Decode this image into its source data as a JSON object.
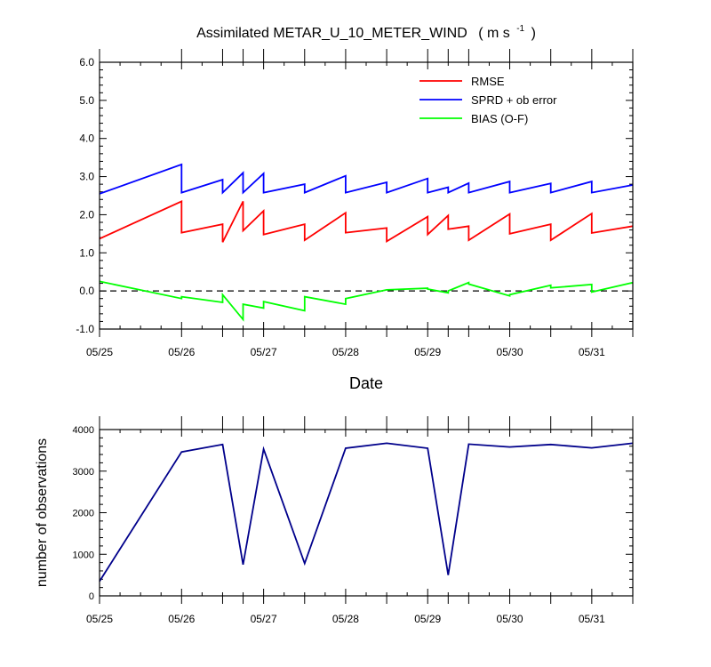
{
  "title": "Assimilated METAR_U_10_METER_WIND",
  "title_units": "( m s",
  "title_units_exp": "-1",
  "title_units_close": ")",
  "chart_data": [
    {
      "type": "line",
      "x_unit": "days",
      "xlabel": "Date",
      "ylabel": "",
      "xlim": [
        "05/25",
        "05/31 12Z"
      ],
      "ylim": [
        -1.0,
        6.0
      ],
      "y_ticks": [
        "-1.0",
        "0.0",
        "1.0",
        "2.0",
        "3.0",
        "4.0",
        "5.0",
        "6.0"
      ],
      "x_ticks": [
        "05/25",
        "05/26",
        "05/27",
        "05/28",
        "05/29",
        "05/30",
        "05/31"
      ],
      "reference_line": {
        "y": 0.0,
        "style": "dashed"
      },
      "legend_position": "top-right",
      "series": [
        {
          "name": "RMSE",
          "color": "#ff0000",
          "segments": [
            {
              "x": [
                0,
                1
              ],
              "y": [
                1.37,
                2.35
              ]
            },
            {
              "x": [
                1,
                1.5
              ],
              "y": [
                1.53,
                1.75
              ]
            },
            {
              "x": [
                1.5,
                1.75
              ],
              "y": [
                1.28,
                2.35
              ]
            },
            {
              "x": [
                1.75,
                2
              ],
              "y": [
                1.58,
                2.1
              ]
            },
            {
              "x": [
                2,
                2.5
              ],
              "y": [
                1.48,
                1.75
              ]
            },
            {
              "x": [
                2.5,
                3
              ],
              "y": [
                1.33,
                2.05
              ]
            },
            {
              "x": [
                3,
                3.5
              ],
              "y": [
                1.53,
                1.65
              ]
            },
            {
              "x": [
                3.5,
                4
              ],
              "y": [
                1.3,
                1.95
              ]
            },
            {
              "x": [
                4,
                4.25
              ],
              "y": [
                1.48,
                1.98
              ]
            },
            {
              "x": [
                4.25,
                4.5
              ],
              "y": [
                1.62,
                1.7
              ]
            },
            {
              "x": [
                4.5,
                5
              ],
              "y": [
                1.33,
                2.02
              ]
            },
            {
              "x": [
                5,
                5.5
              ],
              "y": [
                1.5,
                1.75
              ]
            },
            {
              "x": [
                5.5,
                6
              ],
              "y": [
                1.33,
                2.03
              ]
            },
            {
              "x": [
                6,
                6.5
              ],
              "y": [
                1.52,
                1.7
              ]
            }
          ]
        },
        {
          "name": "SPRD + ob error",
          "color": "#0000ff",
          "segments": [
            {
              "x": [
                0,
                1
              ],
              "y": [
                2.55,
                3.32
              ]
            },
            {
              "x": [
                1,
                1.5
              ],
              "y": [
                2.58,
                2.92
              ]
            },
            {
              "x": [
                1.5,
                1.75
              ],
              "y": [
                2.58,
                3.1
              ]
            },
            {
              "x": [
                1.75,
                2
              ],
              "y": [
                2.58,
                3.08
              ]
            },
            {
              "x": [
                2,
                2.5
              ],
              "y": [
                2.58,
                2.8
              ]
            },
            {
              "x": [
                2.5,
                3
              ],
              "y": [
                2.58,
                3.02
              ]
            },
            {
              "x": [
                3,
                3.5
              ],
              "y": [
                2.58,
                2.85
              ]
            },
            {
              "x": [
                3.5,
                4
              ],
              "y": [
                2.58,
                2.95
              ]
            },
            {
              "x": [
                4,
                4.25
              ],
              "y": [
                2.58,
                2.72
              ]
            },
            {
              "x": [
                4.25,
                4.5
              ],
              "y": [
                2.58,
                2.83
              ]
            },
            {
              "x": [
                4.5,
                5
              ],
              "y": [
                2.58,
                2.87
              ]
            },
            {
              "x": [
                5,
                5.5
              ],
              "y": [
                2.58,
                2.82
              ]
            },
            {
              "x": [
                5.5,
                6
              ],
              "y": [
                2.58,
                2.87
              ]
            },
            {
              "x": [
                6,
                6.5
              ],
              "y": [
                2.58,
                2.78
              ]
            }
          ]
        },
        {
          "name": "BIAS (O-F)",
          "color": "#00ff00",
          "segments": [
            {
              "x": [
                0,
                1
              ],
              "y": [
                0.25,
                -0.2
              ]
            },
            {
              "x": [
                1,
                1.5
              ],
              "y": [
                -0.15,
                -0.3
              ]
            },
            {
              "x": [
                1.5,
                1.75
              ],
              "y": [
                -0.1,
                -0.75
              ]
            },
            {
              "x": [
                1.75,
                2
              ],
              "y": [
                -0.35,
                -0.45
              ]
            },
            {
              "x": [
                2,
                2.5
              ],
              "y": [
                -0.28,
                -0.52
              ]
            },
            {
              "x": [
                2.5,
                3
              ],
              "y": [
                -0.15,
                -0.35
              ]
            },
            {
              "x": [
                3,
                3.5
              ],
              "y": [
                -0.2,
                0.03
              ]
            },
            {
              "x": [
                3.5,
                4
              ],
              "y": [
                0.03,
                0.07
              ]
            },
            {
              "x": [
                4,
                4.25
              ],
              "y": [
                0.05,
                -0.05
              ]
            },
            {
              "x": [
                4.25,
                4.5
              ],
              "y": [
                0.0,
                0.22
              ]
            },
            {
              "x": [
                4.5,
                5
              ],
              "y": [
                0.18,
                -0.13
              ]
            },
            {
              "x": [
                5,
                5.5
              ],
              "y": [
                -0.1,
                0.15
              ]
            },
            {
              "x": [
                5.5,
                6
              ],
              "y": [
                0.08,
                0.17
              ]
            },
            {
              "x": [
                6,
                6.5
              ],
              "y": [
                -0.03,
                0.22
              ]
            }
          ]
        }
      ]
    },
    {
      "type": "line",
      "x_unit": "days",
      "xlabel": "",
      "ylabel": "number of observations",
      "xlim": [
        "05/25",
        "05/31 12Z"
      ],
      "ylim": [
        0,
        4000
      ],
      "y_ticks": [
        "0",
        "1000",
        "2000",
        "3000",
        "4000"
      ],
      "x_ticks": [
        "05/25",
        "05/26",
        "05/27",
        "05/28",
        "05/29",
        "05/30",
        "05/31"
      ],
      "series": [
        {
          "color": "#00008b",
          "x": [
            0,
            1,
            1.5,
            1.75,
            2,
            2.5,
            3,
            3.5,
            4,
            4.25,
            4.5,
            5,
            5.5,
            6,
            6.5
          ],
          "y": [
            350,
            3460,
            3640,
            750,
            3530,
            780,
            3550,
            3670,
            3550,
            500,
            3650,
            3580,
            3640,
            3560,
            3670
          ]
        }
      ]
    }
  ]
}
